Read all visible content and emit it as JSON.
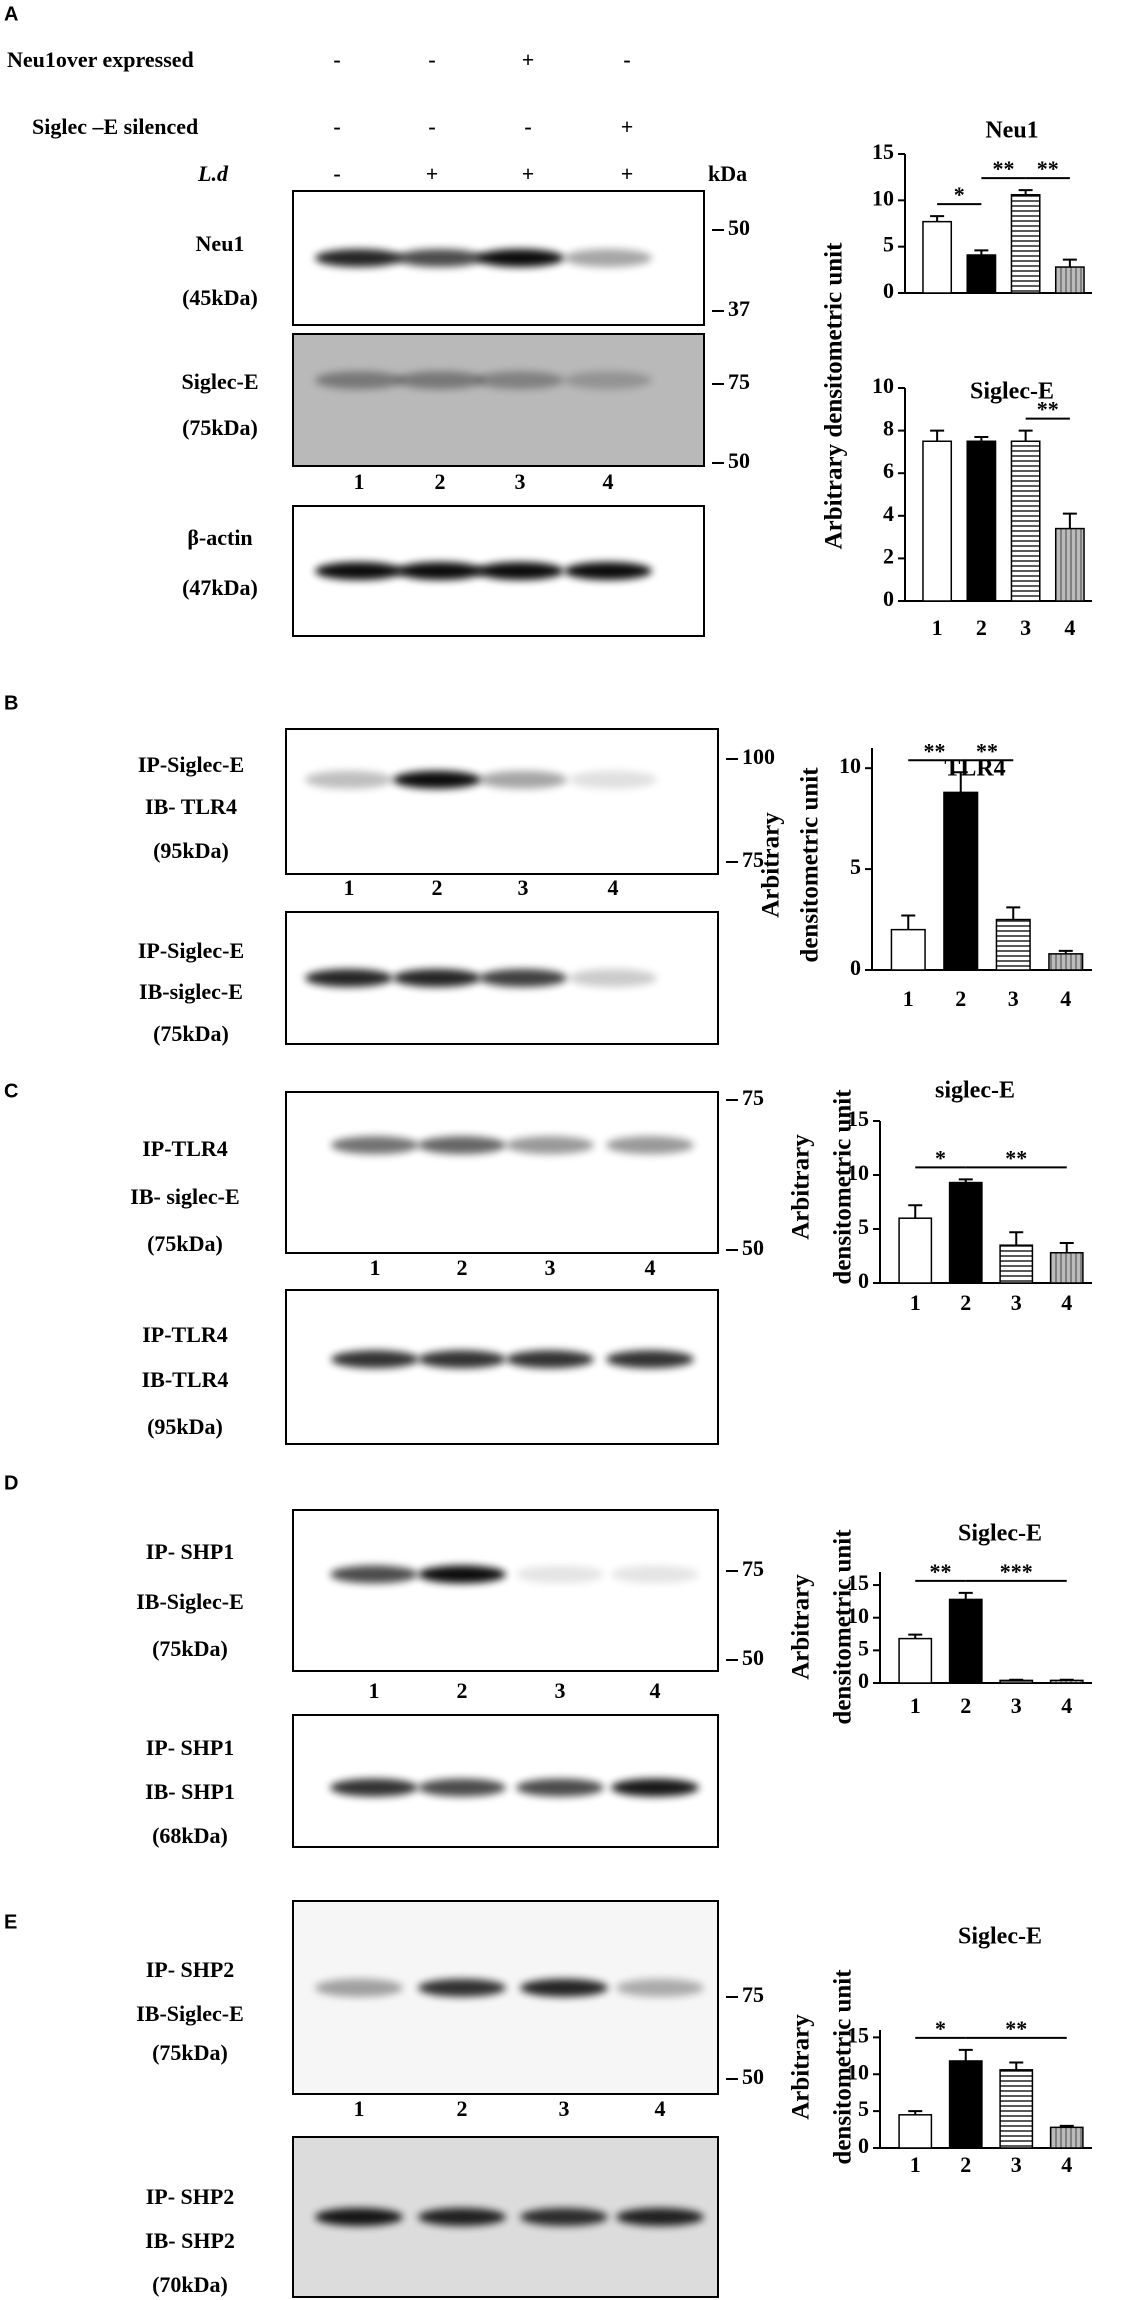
{
  "panels": [
    {
      "letter": "A",
      "treatments": [
        {
          "label": "Neu1over expressed",
          "signs": [
            "-",
            "-",
            "+",
            "-"
          ]
        },
        {
          "label": "Siglec –E silenced",
          "signs": [
            "-",
            "-",
            "-",
            "+"
          ]
        },
        {
          "label": "L.d",
          "signs": [
            "-",
            "+",
            "+",
            "+"
          ]
        }
      ],
      "kda": "kDa",
      "blots": [
        {
          "label": [
            "Neu1",
            "(45kDa)"
          ],
          "markers": [
            "50",
            "37"
          ]
        },
        {
          "label": [
            "Siglec-E",
            "(75kDa)"
          ],
          "markers": [
            "75",
            "50"
          ]
        },
        {
          "label": [
            "β-actin",
            "(47kDa)"
          ]
        }
      ],
      "lanes": [
        "1",
        "2",
        "3",
        "4"
      ]
    },
    {
      "letter": "B",
      "blots": [
        {
          "label": [
            "IP-Siglec-E",
            "IB- TLR4",
            "(95kDa)"
          ],
          "markers": [
            "100",
            "75"
          ]
        },
        {
          "label": [
            "IP-Siglec-E",
            "IB-siglec-E",
            "(75kDa)"
          ]
        }
      ],
      "lanes": [
        "1",
        "2",
        "3",
        "4"
      ]
    },
    {
      "letter": "C",
      "blots": [
        {
          "label": [
            "IP-TLR4",
            "IB- siglec-E",
            "(75kDa)"
          ],
          "markers": [
            "75",
            "50"
          ]
        },
        {
          "label": [
            "IP-TLR4",
            "IB-TLR4",
            "(95kDa)"
          ]
        }
      ],
      "lanes": [
        "1",
        "2",
        "3",
        "4"
      ]
    },
    {
      "letter": "D",
      "blots": [
        {
          "label": [
            "IP- SHP1",
            "IB-Siglec-E",
            "(75kDa)"
          ],
          "markers": [
            "75",
            "50"
          ]
        },
        {
          "label": [
            "IP- SHP1",
            "IB- SHP1",
            "(68kDa)"
          ]
        }
      ],
      "lanes": [
        "1",
        "2",
        "3",
        "4"
      ]
    },
    {
      "letter": "E",
      "blots": [
        {
          "label": [
            "IP- SHP2",
            "IB-Siglec-E",
            "(75kDa)"
          ],
          "markers": [
            "75",
            "50"
          ]
        },
        {
          "label": [
            "IP- SHP2",
            "IB- SHP2",
            "(70kDa)"
          ]
        }
      ],
      "lanes": [
        "1",
        "2",
        "3",
        "4"
      ]
    }
  ],
  "chart_data": [
    {
      "type": "bar",
      "title": "Neu1",
      "ylabel": [
        "Arbitrary densitometric unit"
      ],
      "values": [
        7.7,
        4.1,
        10.6,
        2.8
      ],
      "errors": [
        0.6,
        0.5,
        0.5,
        0.8
      ],
      "bar_styles": [
        "white",
        "black",
        "horizontal-lines",
        "vertical-lines"
      ],
      "ylim": [
        0,
        15
      ],
      "yticks": [
        0,
        5,
        10,
        15
      ],
      "significance": [
        {
          "label": "*",
          "from": 1,
          "to": 2
        },
        {
          "label": "**",
          "from": 2,
          "to": 3
        },
        {
          "label": "**",
          "from": 3,
          "to": 4
        }
      ]
    },
    {
      "type": "bar",
      "title": "Siglec-E",
      "categories": [
        "1",
        "2",
        "3",
        "4"
      ],
      "values": [
        7.5,
        7.5,
        7.5,
        3.4
      ],
      "errors": [
        0.5,
        0.2,
        0.5,
        0.7
      ],
      "bar_styles": [
        "white",
        "black",
        "horizontal-lines",
        "vertical-lines"
      ],
      "ylim": [
        0,
        10
      ],
      "yticks": [
        0,
        2,
        4,
        6,
        8,
        10
      ],
      "significance": [
        {
          "label": "**",
          "from": 3,
          "to": 4
        }
      ]
    },
    {
      "type": "bar",
      "title": "TLR4",
      "ylabel": [
        "Arbitrary",
        "densitometric unit"
      ],
      "categories": [
        "1",
        "2",
        "3",
        "4"
      ],
      "values": [
        2.0,
        8.8,
        2.5,
        0.8
      ],
      "errors": [
        0.7,
        1.0,
        0.6,
        0.15
      ],
      "bar_styles": [
        "white",
        "black",
        "horizontal-lines",
        "vertical-lines"
      ],
      "ylim": [
        0,
        11
      ],
      "yticks": [
        0,
        5,
        10
      ],
      "significance": [
        {
          "label": "**",
          "from": 1,
          "to": 2
        },
        {
          "label": "**",
          "from": 2,
          "to": 3
        }
      ]
    },
    {
      "type": "bar",
      "title": "siglec-E",
      "ylabel": [
        "Arbitrary",
        "densitometric unit"
      ],
      "categories": [
        "1",
        "2",
        "3",
        "4"
      ],
      "values": [
        6.0,
        9.3,
        3.5,
        2.8
      ],
      "errors": [
        1.2,
        0.3,
        1.2,
        0.9
      ],
      "bar_styles": [
        "white",
        "black",
        "horizontal-lines",
        "vertical-lines"
      ],
      "ylim": [
        0,
        15
      ],
      "yticks": [
        0,
        5,
        10,
        15
      ],
      "significance": [
        {
          "label": "*",
          "from": 1,
          "to": 2
        },
        {
          "label": "**",
          "from": 2,
          "to": 4
        }
      ]
    },
    {
      "type": "bar",
      "title": "Siglec-E",
      "ylabel": [
        "Arbitrary",
        "densitometric unit"
      ],
      "categories": [
        "1",
        "2",
        "3",
        "4"
      ],
      "values": [
        6.8,
        12.8,
        0.4,
        0.4
      ],
      "errors": [
        0.6,
        1.0,
        0.1,
        0.1
      ],
      "bar_styles": [
        "white",
        "black",
        "horizontal-lines",
        "vertical-lines"
      ],
      "ylim": [
        0,
        17
      ],
      "yticks": [
        0,
        5,
        10,
        15
      ],
      "significance": [
        {
          "label": "**",
          "from": 1,
          "to": 2
        },
        {
          "label": "***",
          "from": 2,
          "to": 4
        }
      ]
    },
    {
      "type": "bar",
      "title": "Siglec-E",
      "ylabel": [
        "Arbitrary",
        "densitometric unit"
      ],
      "categories": [
        "1",
        "2",
        "3",
        "4"
      ],
      "values": [
        4.5,
        11.8,
        10.6,
        2.8
      ],
      "errors": [
        0.5,
        1.5,
        1.0,
        0.2
      ],
      "bar_styles": [
        "white",
        "black",
        "horizontal-lines",
        "vertical-lines"
      ],
      "ylim": [
        0,
        16
      ],
      "yticks": [
        0,
        5,
        10,
        15
      ],
      "significance": [
        {
          "label": "*",
          "from": 1,
          "to": 2
        },
        {
          "label": "**",
          "from": 2,
          "to": 4
        }
      ]
    }
  ]
}
